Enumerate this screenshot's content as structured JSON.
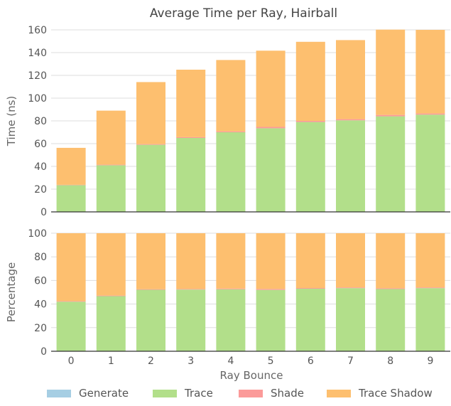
{
  "chart_data": {
    "type": "bar",
    "stacked": true,
    "title": "Average Time per Ray, Hairball",
    "xlabel": "Ray Bounce",
    "categories": [
      "0",
      "1",
      "2",
      "3",
      "4",
      "5",
      "6",
      "7",
      "8",
      "9"
    ],
    "colors": {
      "Generate": "#a6cee3",
      "Trace": "#b2df8a",
      "Shade": "#fb9a99",
      "Trace Shadow": "#fdbf6f"
    },
    "legend_position": "bottom",
    "grid": true,
    "panels": [
      {
        "ylabel": "Time (ns)",
        "ylim": [
          0,
          160
        ],
        "yticks": [
          "0",
          "20",
          "40",
          "60",
          "80",
          "100",
          "120",
          "140",
          "160"
        ],
        "series": [
          {
            "name": "Generate",
            "values": [
              0,
              0,
              0,
              0,
              0,
              0,
              0,
              0,
              0,
              0
            ]
          },
          {
            "name": "Trace",
            "values": [
              23.5,
              41,
              59,
              65,
              70,
              73.5,
              79,
              80.5,
              84,
              85.5
            ]
          },
          {
            "name": "Shade",
            "values": [
              0.3,
              0.5,
              0.6,
              0.7,
              0.8,
              1.2,
              1.0,
              1.0,
              1.2,
              1.0
            ]
          },
          {
            "name": "Trace Shadow",
            "values": [
              32.5,
              47.5,
              54.5,
              59.3,
              62.7,
              67,
              69.5,
              69.5,
              75,
              73.5
            ]
          }
        ]
      },
      {
        "ylabel": "Percentage",
        "ylim": [
          0,
          100
        ],
        "yticks": [
          "0",
          "20",
          "40",
          "60",
          "80",
          "100"
        ],
        "series": [
          {
            "name": "Generate",
            "values": [
              0,
              0,
              0,
              0,
              0,
              0,
              0,
              0,
              0,
              0
            ]
          },
          {
            "name": "Trace",
            "values": [
              42,
              46.7,
              52.1,
              52.3,
              52.5,
              52,
              53,
              53.5,
              52.7,
              53.5
            ]
          },
          {
            "name": "Shade",
            "values": [
              0.5,
              0.5,
              0.5,
              0.5,
              0.6,
              0.8,
              0.6,
              0.6,
              0.7,
              0.6
            ]
          },
          {
            "name": "Trace Shadow",
            "values": [
              57.5,
              52.8,
              47.4,
              47.2,
              46.9,
              47.2,
              46.4,
              45.9,
              46.6,
              45.9
            ]
          }
        ]
      }
    ]
  }
}
